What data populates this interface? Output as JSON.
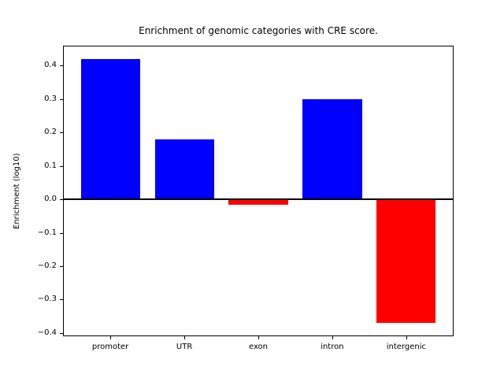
{
  "chart_data": {
    "type": "bar",
    "title": "Enrichment of genomic categories with CRE score.",
    "xlabel": "",
    "ylabel": "Enrichment (log10)",
    "categories": [
      "promoter",
      "UTR",
      "exon",
      "intron",
      "intergenic"
    ],
    "values": [
      0.42,
      0.18,
      -0.017,
      0.3,
      -0.37
    ],
    "bar_colors": [
      "#0000ff",
      "#0000ff",
      "#ff0000",
      "#0000ff",
      "#ff0000"
    ],
    "positive_color": "#0000ff",
    "negative_color": "#ff0000",
    "bar_width": 0.8,
    "xlim": [
      -0.64,
      4.64
    ],
    "ylim": [
      -0.41,
      0.46
    ],
    "yticks": [
      0.4,
      0.3,
      0.2,
      0.1,
      0.0,
      -0.1,
      -0.2,
      -0.3,
      -0.4
    ],
    "ytick_labels": [
      "0.4",
      "0.3",
      "0.2",
      "0.1",
      "0.0",
      "−0.1",
      "−0.2",
      "−0.3",
      "−0.4"
    ],
    "zero_line": true,
    "grid": false,
    "legend": null,
    "background_color": "#ffffff",
    "text_color": "#000000"
  }
}
